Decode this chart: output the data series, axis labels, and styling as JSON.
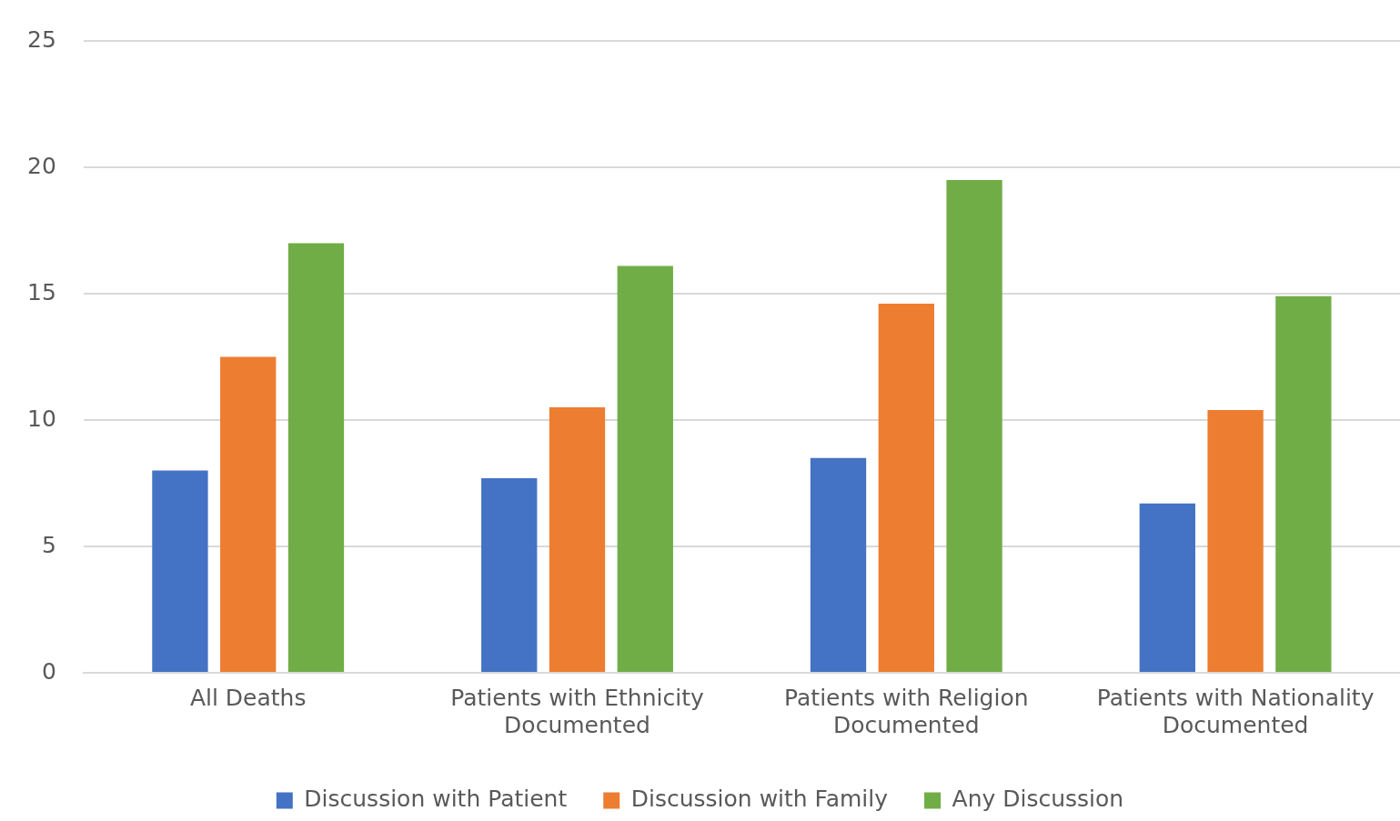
{
  "chart_data": {
    "type": "bar",
    "categories": [
      "All Deaths",
      "Patients with Ethnicity Documented",
      "Patients with Religion Documented",
      "Patients with Nationality Documented"
    ],
    "series": [
      {
        "name": "Discussion with Patient",
        "color": "#4472c4",
        "values": [
          8.0,
          7.7,
          8.5,
          6.7
        ]
      },
      {
        "name": "Discussion with Family",
        "color": "#ed7d31",
        "values": [
          12.5,
          10.5,
          14.6,
          10.4
        ]
      },
      {
        "name": "Any Discussion",
        "color": "#70ad47",
        "values": [
          17.0,
          16.1,
          19.5,
          14.9
        ]
      }
    ],
    "ylim": [
      0,
      25
    ],
    "yticks": [
      0,
      5,
      10,
      15,
      20,
      25
    ],
    "grid": "y",
    "legend": "bottom"
  }
}
